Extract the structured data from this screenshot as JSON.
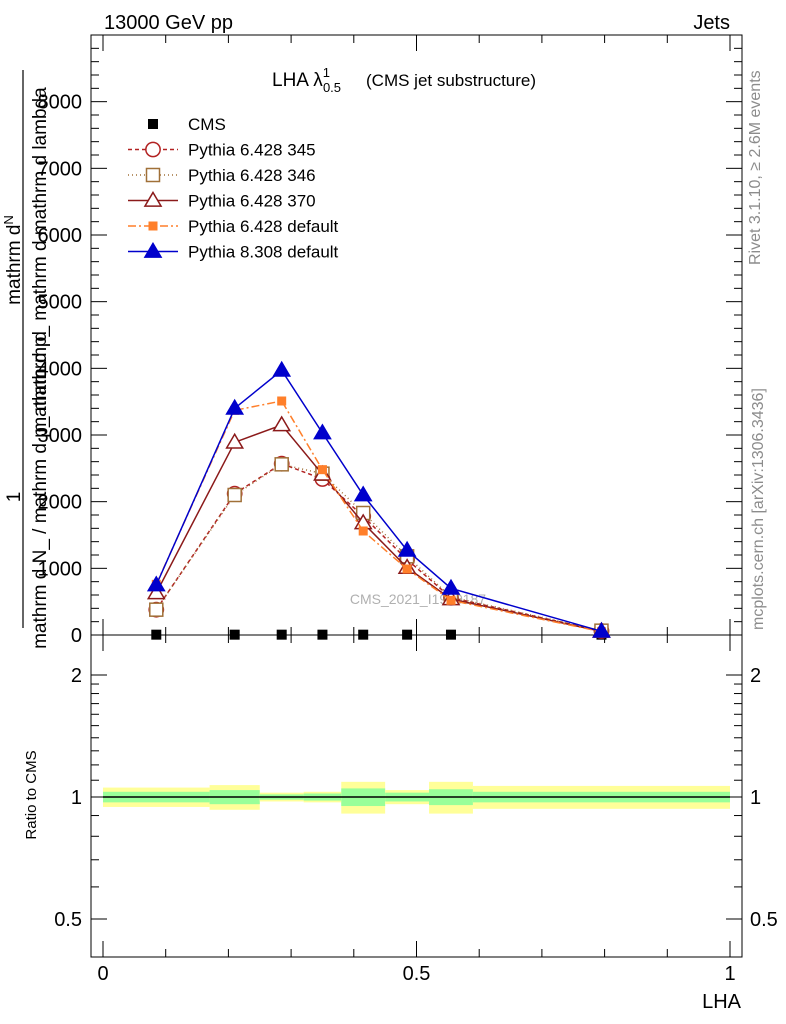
{
  "header": {
    "left": "13000 GeV pp",
    "right": "Jets"
  },
  "side_text": {
    "top": "Rivet 3.1.10, ≥ 2.6M events",
    "bottom": "mcplots.cern.ch [arXiv:1306.3436]"
  },
  "chart_data": [
    {
      "type": "line",
      "title": "LHA λ",
      "title_sup": "1",
      "title_sub": "0.5",
      "subtitle": "(CMS jet substructure)",
      "watermark": "CMS_2021_I1920187",
      "ylabel_numerator": "mathrm d",
      "ylabel_numerator_n": "N",
      "ylabel_denominator": "mathrm d p_ mathrm d mathrm d lambda",
      "ylabel_one": "1",
      "ylabel_lower": "mathrm d N_ / mathrm d p_ mathrm d",
      "xlabel": "",
      "xlim": [
        0,
        1
      ],
      "ylim": [
        0,
        9000
      ],
      "y_ticks": [
        0,
        1000,
        2000,
        3000,
        4000,
        5000,
        6000,
        7000,
        8000
      ],
      "y_tick_labels": [
        "0",
        "1000",
        "2000",
        "3000",
        "4000",
        "5000",
        "6000",
        "7000",
        "8000"
      ],
      "legend_position": "top-left",
      "x": [
        0.085,
        0.21,
        0.285,
        0.35,
        0.415,
        0.485,
        0.555,
        0.795
      ],
      "series": [
        {
          "name": "CMS",
          "color": "#000000",
          "marker": "square-filled",
          "dash": "none",
          "values": [
            5,
            5,
            5,
            5,
            5,
            5,
            5,
            5
          ]
        },
        {
          "name": "Pythia 6.428 345",
          "color": "#b22222",
          "marker": "circle-open",
          "dash": "4,3",
          "values": [
            380,
            2120,
            2570,
            2340,
            1780,
            1130,
            560,
            60
          ]
        },
        {
          "name": "Pythia 6.428 346",
          "color": "#a07038",
          "marker": "square-open",
          "dash": "1,3",
          "values": [
            380,
            2100,
            2560,
            2420,
            1830,
            1180,
            570,
            65
          ]
        },
        {
          "name": "Pythia 6.428 370",
          "color": "#8b1a1a",
          "marker": "triangle-open",
          "dash": "none",
          "values": [
            630,
            2890,
            3150,
            2410,
            1680,
            1010,
            540,
            55
          ]
        },
        {
          "name": "Pythia 6.428 default",
          "color": "#ff7f2a",
          "marker": "square-filled",
          "dash": "8,3,2,3",
          "values": [
            760,
            3370,
            3510,
            2480,
            1560,
            990,
            520,
            50
          ]
        },
        {
          "name": "Pythia 8.308 default",
          "color": "#0000cc",
          "marker": "triangle-filled",
          "dash": "none",
          "values": [
            750,
            3400,
            3970,
            3030,
            2100,
            1270,
            700,
            55
          ]
        }
      ]
    },
    {
      "type": "area",
      "ylabel": "Ratio to CMS",
      "xlabel": "LHA",
      "xlim": [
        0,
        1
      ],
      "ylim": [
        0.4,
        2.4
      ],
      "scale": "log",
      "y_ticks": [
        0.5,
        1,
        2
      ],
      "y_tick_labels": [
        "0.5",
        "1",
        "2"
      ],
      "x_ticks": [
        0,
        0.5,
        1
      ],
      "x_tick_labels": [
        "0",
        "0.5",
        "1"
      ],
      "bins": [
        0,
        0.17,
        0.25,
        0.32,
        0.38,
        0.45,
        0.52,
        0.59,
        1.0
      ],
      "band_inner": [
        [
          0.97,
          1.03
        ],
        [
          0.96,
          1.04
        ],
        [
          0.985,
          1.015
        ],
        [
          0.98,
          1.02
        ],
        [
          0.95,
          1.05
        ],
        [
          0.975,
          1.025
        ],
        [
          0.955,
          1.045
        ],
        [
          0.97,
          1.03
        ]
      ],
      "band_outer": [
        [
          0.945,
          1.055
        ],
        [
          0.93,
          1.07
        ],
        [
          0.975,
          1.025
        ],
        [
          0.97,
          1.03
        ],
        [
          0.91,
          1.09
        ],
        [
          0.96,
          1.04
        ],
        [
          0.91,
          1.09
        ],
        [
          0.935,
          1.065
        ]
      ],
      "inner_color": "#99ff99",
      "outer_color": "#ffff99",
      "reference": 1
    }
  ]
}
